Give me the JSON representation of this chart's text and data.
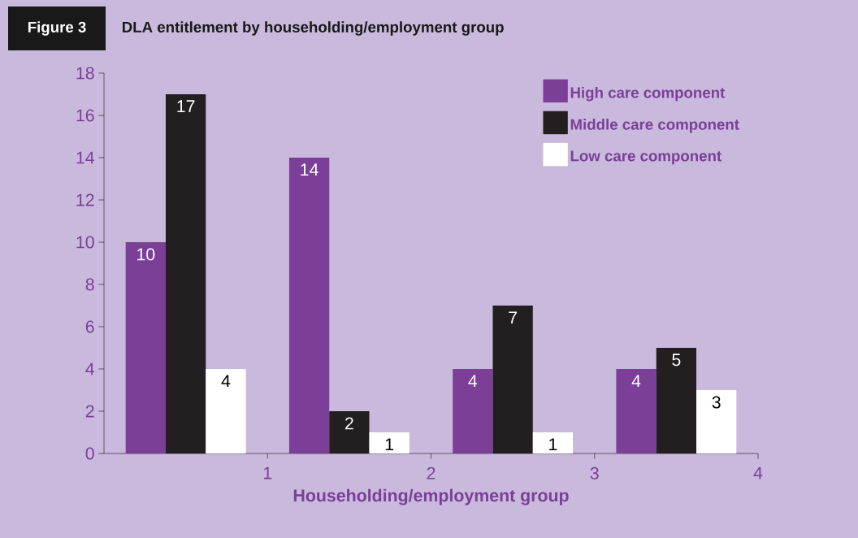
{
  "chart_data": {
    "type": "bar",
    "title": "DLA entitlement by householding/employment group",
    "annotations": [
      "Figure 3"
    ],
    "xlabel": "Householding/employment group",
    "x": [
      0.5,
      1.5,
      2.5,
      3.5
    ],
    "series": [
      {
        "name": "High care component",
        "color": "#7b3f98",
        "values": [
          10,
          14,
          4,
          4
        ]
      },
      {
        "name": "Middle care component",
        "color": "#231f20",
        "values": [
          17,
          2,
          7,
          5
        ]
      },
      {
        "name": "Low care component",
        "color": "#ffffff",
        "values": [
          4,
          1,
          1,
          3
        ]
      }
    ],
    "xlim": [
      0,
      4
    ],
    "xticks": [
      1,
      2,
      3,
      4
    ],
    "ylim": [
      0,
      18
    ],
    "yticks": [
      0,
      2,
      4,
      6,
      8,
      10,
      12,
      14,
      16,
      18
    ],
    "data_labels": true,
    "grid": false,
    "legend": "top right"
  }
}
